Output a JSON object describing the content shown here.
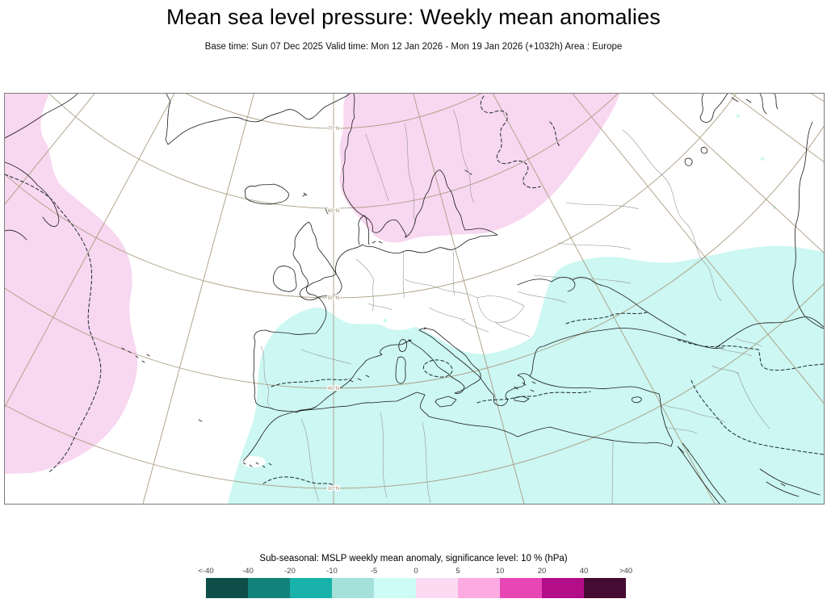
{
  "header": {
    "title": "Mean sea level pressure: Weekly mean anomalies",
    "subtitle": "Base time: Sun 07 Dec 2025 Valid time: Mon 12 Jan 2026 - Mon 19 Jan 2026 (+1032h) Area : Europe"
  },
  "map": {
    "lat_labels": [
      "70°N",
      "60°N",
      "50°N",
      "40°N",
      "30°N"
    ],
    "anomaly_regions": [
      {
        "sign": "positive",
        "value_band": "0 to 5 hPa",
        "location": "Northwest Atlantic / Labrador Sea",
        "fill": "#f8d7f0"
      },
      {
        "sign": "positive",
        "value_band": "0 to 5 hPa",
        "location": "Scandinavia / Northwest Russia",
        "fill": "#f8d7f0"
      },
      {
        "sign": "negative",
        "value_band": "-5 to 0 hPa",
        "location": "Mediterranean / North Africa / Middle East",
        "fill": "#ccf7f2"
      }
    ]
  },
  "legend": {
    "title": "Sub-seasonal: MSLP weekly mean anomaly, significance level: 10 % (hPa)",
    "tick_labels": [
      "<-40",
      "-40",
      "-20",
      "-10",
      "-5",
      "0",
      "5",
      "10",
      "20",
      "40",
      ">40"
    ],
    "swatches": [
      "#0d4e48",
      "#12837b",
      "#18b2aa",
      "#a6e0db",
      "#cdfbf6",
      "#fcdbf2",
      "#fcaae2",
      "#e846b4",
      "#b40d89",
      "#460b33"
    ]
  },
  "colors": {
    "positive_anomaly_fill": "#f8d7f0",
    "negative_anomaly_fill": "#ccf7f2",
    "graticule": "#ab9d82",
    "coastline": "#1a1a1a",
    "country_border": "#8f8f8f",
    "contour_dashed": "#1c2a33",
    "frame": "#7a7a7a"
  }
}
